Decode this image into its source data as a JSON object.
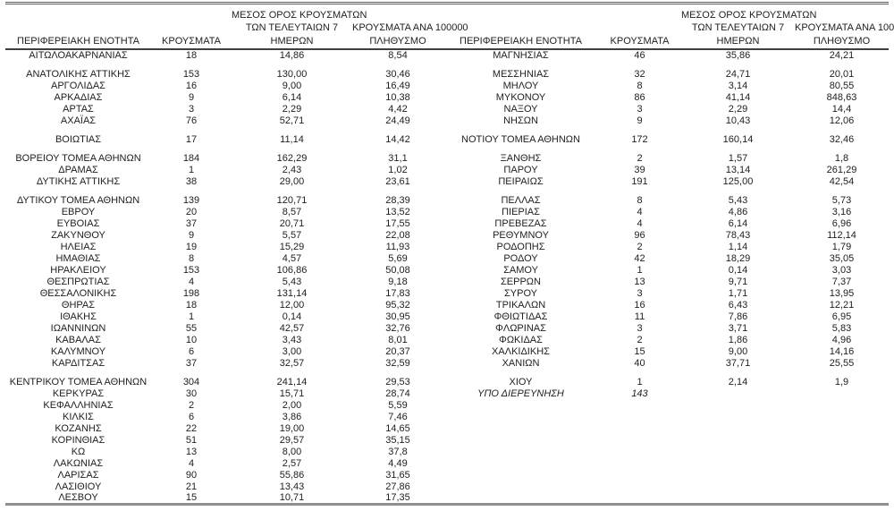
{
  "header": {
    "region": "ΠΕΡΙΦΕΡΕΙΑΚΗ ΕΝΟΤΗΤΑ",
    "cases": "ΚΡΟΥΣΜΑΤΑ",
    "avg_line1": "ΜΕΣΟΣ ΟΡΟΣ ΚΡΟΥΣΜΑΤΩΝ",
    "avg_line2": "ΤΩΝ ΤΕΛΕΥΤΑΙΩΝ 7",
    "avg_line3": "ΗΜΕΡΩΝ",
    "per100k_line1": "ΚΡΟΥΣΜΑΤΑ ΑΝΑ 100000",
    "per100k_line2": "ΠΛΗΘΥΣΜΟ"
  },
  "colors": {
    "text": "#212121",
    "header_rule": "#3f3f3f",
    "top_rule": "#5a5a5a",
    "bottom_rule": "#8f8f8f"
  },
  "left_rows": [
    {
      "region": "ΑΙΤΩΛΟΑΚΑΡΝΑΝΙΑΣ",
      "cases": "18",
      "avg7": "14,86",
      "per100k": "8,54",
      "gap": false
    },
    {
      "region": "ΑΝΑΤΟΛΙΚΗΣ ΑΤΤΙΚΗΣ",
      "cases": "153",
      "avg7": "130,00",
      "per100k": "30,46",
      "gap": true
    },
    {
      "region": "ΑΡΓΟΛΙΔΑΣ",
      "cases": "16",
      "avg7": "9,00",
      "per100k": "16,49",
      "gap": false
    },
    {
      "region": "ΑΡΚΑΔΙΑΣ",
      "cases": "9",
      "avg7": "6,14",
      "per100k": "10,38",
      "gap": false
    },
    {
      "region": "ΑΡΤΑΣ",
      "cases": "3",
      "avg7": "2,29",
      "per100k": "4,42",
      "gap": false
    },
    {
      "region": "ΑΧΑΪΑΣ",
      "cases": "76",
      "avg7": "52,71",
      "per100k": "24,49",
      "gap": false
    },
    {
      "region": "ΒΟΙΩΤΙΑΣ",
      "cases": "17",
      "avg7": "11,14",
      "per100k": "14,42",
      "gap": true
    },
    {
      "region": "ΒΟΡΕΙΟΥ ΤΟΜΕΑ ΑΘΗΝΩΝ",
      "cases": "184",
      "avg7": "162,29",
      "per100k": "31,1",
      "gap": true
    },
    {
      "region": "ΔΡΑΜΑΣ",
      "cases": "1",
      "avg7": "2,43",
      "per100k": "1,02",
      "gap": false
    },
    {
      "region": "ΔΥΤΙΚΗΣ ΑΤΤΙΚΗΣ",
      "cases": "38",
      "avg7": "29,00",
      "per100k": "23,61",
      "gap": false
    },
    {
      "region": "ΔΥΤΙΚΟΥ ΤΟΜΕΑ ΑΘΗΝΩΝ",
      "cases": "139",
      "avg7": "120,71",
      "per100k": "28,39",
      "gap": true
    },
    {
      "region": "ΕΒΡΟΥ",
      "cases": "20",
      "avg7": "8,57",
      "per100k": "13,52",
      "gap": false
    },
    {
      "region": "ΕΥΒΟΙΑΣ",
      "cases": "37",
      "avg7": "20,71",
      "per100k": "17,55",
      "gap": false
    },
    {
      "region": "ΖΑΚΥΝΘΟΥ",
      "cases": "9",
      "avg7": "5,57",
      "per100k": "22,08",
      "gap": false
    },
    {
      "region": "ΗΛΕΙΑΣ",
      "cases": "19",
      "avg7": "15,29",
      "per100k": "11,93",
      "gap": false
    },
    {
      "region": "ΗΜΑΘΙΑΣ",
      "cases": "8",
      "avg7": "4,57",
      "per100k": "5,69",
      "gap": false
    },
    {
      "region": "ΗΡΑΚΛΕΙΟΥ",
      "cases": "153",
      "avg7": "106,86",
      "per100k": "50,08",
      "gap": false
    },
    {
      "region": "ΘΕΣΠΡΩΤΙΑΣ",
      "cases": "4",
      "avg7": "5,43",
      "per100k": "9,18",
      "gap": false
    },
    {
      "region": "ΘΕΣΣΑΛΟΝΙΚΗΣ",
      "cases": "198",
      "avg7": "131,14",
      "per100k": "17,83",
      "gap": false
    },
    {
      "region": "ΘΗΡΑΣ",
      "cases": "18",
      "avg7": "12,00",
      "per100k": "95,32",
      "gap": false
    },
    {
      "region": "ΙΘΑΚΗΣ",
      "cases": "1",
      "avg7": "0,14",
      "per100k": "30,95",
      "gap": false
    },
    {
      "region": "ΙΩΑΝΝΙΝΩΝ",
      "cases": "55",
      "avg7": "42,57",
      "per100k": "32,76",
      "gap": false
    },
    {
      "region": "ΚΑΒΑΛΑΣ",
      "cases": "10",
      "avg7": "3,43",
      "per100k": "8,01",
      "gap": false
    },
    {
      "region": "ΚΑΛΥΜΝΟΥ",
      "cases": "6",
      "avg7": "3,00",
      "per100k": "20,37",
      "gap": false
    },
    {
      "region": "ΚΑΡΔΙΤΣΑΣ",
      "cases": "37",
      "avg7": "32,57",
      "per100k": "32,59",
      "gap": false
    },
    {
      "region": "ΚΕΝΤΡΙΚΟΥ ΤΟΜΕΑ ΑΘΗΝΩΝ",
      "cases": "304",
      "avg7": "241,14",
      "per100k": "29,53",
      "gap": true
    },
    {
      "region": "ΚΕΡΚΥΡΑΣ",
      "cases": "30",
      "avg7": "15,71",
      "per100k": "28,74",
      "gap": false
    },
    {
      "region": "ΚΕΦΑΛΛΗΝΙΑΣ",
      "cases": "2",
      "avg7": "2,00",
      "per100k": "5,59",
      "gap": false
    },
    {
      "region": "ΚΙΛΚΙΣ",
      "cases": "6",
      "avg7": "3,86",
      "per100k": "7,46",
      "gap": false
    },
    {
      "region": "ΚΟΖΑΝΗΣ",
      "cases": "22",
      "avg7": "19,00",
      "per100k": "14,65",
      "gap": false
    },
    {
      "region": "ΚΟΡΙΝΘΙΑΣ",
      "cases": "51",
      "avg7": "29,57",
      "per100k": "35,15",
      "gap": false
    },
    {
      "region": "ΚΩ",
      "cases": "13",
      "avg7": "8,00",
      "per100k": "37,8",
      "gap": false
    },
    {
      "region": "ΛΑΚΩΝΙΑΣ",
      "cases": "4",
      "avg7": "2,57",
      "per100k": "4,49",
      "gap": false
    },
    {
      "region": "ΛΑΡΙΣΑΣ",
      "cases": "90",
      "avg7": "55,86",
      "per100k": "31,65",
      "gap": false
    },
    {
      "region": "ΛΑΣΙΘΙΟΥ",
      "cases": "21",
      "avg7": "13,43",
      "per100k": "27,86",
      "gap": false
    },
    {
      "region": "ΛΕΣΒΟΥ",
      "cases": "15",
      "avg7": "10,71",
      "per100k": "17,35",
      "gap": false
    }
  ],
  "right_rows": [
    {
      "region": "ΜΑΓΝΗΣΙΑΣ",
      "cases": "46",
      "avg7": "35,86",
      "per100k": "24,21",
      "gap": false
    },
    {
      "region": "ΜΕΣΣΗΝΙΑΣ",
      "cases": "32",
      "avg7": "24,71",
      "per100k": "20,01",
      "gap": true
    },
    {
      "region": "ΜΗΛΟΥ",
      "cases": "8",
      "avg7": "3,14",
      "per100k": "80,55",
      "gap": false
    },
    {
      "region": "ΜΥΚΟΝΟΥ",
      "cases": "86",
      "avg7": "41,14",
      "per100k": "848,63",
      "gap": false
    },
    {
      "region": "ΝΑΞΟΥ",
      "cases": "3",
      "avg7": "2,29",
      "per100k": "14,4",
      "gap": false
    },
    {
      "region": "ΝΗΣΩΝ",
      "cases": "9",
      "avg7": "10,43",
      "per100k": "12,06",
      "gap": false
    },
    {
      "region": "ΝΟΤΙΟΥ ΤΟΜΕΑ ΑΘΗΝΩΝ",
      "cases": "172",
      "avg7": "160,14",
      "per100k": "32,46",
      "gap": true
    },
    {
      "region": "ΞΑΝΘΗΣ",
      "cases": "2",
      "avg7": "1,57",
      "per100k": "1,8",
      "gap": true
    },
    {
      "region": "ΠΑΡΟΥ",
      "cases": "39",
      "avg7": "13,14",
      "per100k": "261,29",
      "gap": false
    },
    {
      "region": "ΠΕΙΡΑΙΩΣ",
      "cases": "191",
      "avg7": "125,00",
      "per100k": "42,54",
      "gap": false
    },
    {
      "region": "ΠΕΛΛΑΣ",
      "cases": "8",
      "avg7": "5,43",
      "per100k": "5,73",
      "gap": true
    },
    {
      "region": "ΠΙΕΡΙΑΣ",
      "cases": "4",
      "avg7": "4,86",
      "per100k": "3,16",
      "gap": false
    },
    {
      "region": "ΠΡΕΒΕΖΑΣ",
      "cases": "4",
      "avg7": "6,14",
      "per100k": "6,96",
      "gap": false
    },
    {
      "region": "ΡΕΘΥΜΝΟΥ",
      "cases": "96",
      "avg7": "78,43",
      "per100k": "112,14",
      "gap": false
    },
    {
      "region": "ΡΟΔΟΠΗΣ",
      "cases": "2",
      "avg7": "1,14",
      "per100k": "1,79",
      "gap": false
    },
    {
      "region": "ΡΟΔΟΥ",
      "cases": "42",
      "avg7": "18,29",
      "per100k": "35,05",
      "gap": false
    },
    {
      "region": "ΣΑΜΟΥ",
      "cases": "1",
      "avg7": "0,14",
      "per100k": "3,03",
      "gap": false
    },
    {
      "region": "ΣΕΡΡΩΝ",
      "cases": "13",
      "avg7": "9,71",
      "per100k": "7,37",
      "gap": false
    },
    {
      "region": "ΣΥΡΟΥ",
      "cases": "3",
      "avg7": "1,71",
      "per100k": "13,95",
      "gap": false
    },
    {
      "region": "ΤΡΙΚΑΛΩΝ",
      "cases": "16",
      "avg7": "6,43",
      "per100k": "12,21",
      "gap": false
    },
    {
      "region": "ΦΘΙΩΤΙΔΑΣ",
      "cases": "11",
      "avg7": "7,86",
      "per100k": "6,95",
      "gap": false
    },
    {
      "region": "ΦΛΩΡΙΝΑΣ",
      "cases": "3",
      "avg7": "3,71",
      "per100k": "5,83",
      "gap": false
    },
    {
      "region": "ΦΩΚΙΔΑΣ",
      "cases": "2",
      "avg7": "1,86",
      "per100k": "4,96",
      "gap": false
    },
    {
      "region": "ΧΑΛΚΙΔΙΚΗΣ",
      "cases": "15",
      "avg7": "9,00",
      "per100k": "14,16",
      "gap": false
    },
    {
      "region": "ΧΑΝΙΩΝ",
      "cases": "40",
      "avg7": "37,71",
      "per100k": "25,55",
      "gap": false
    },
    {
      "region": "ΧΙΟΥ",
      "cases": "1",
      "avg7": "2,14",
      "per100k": "1,9",
      "gap": true
    },
    {
      "region": "ΥΠΟ ΔΙΕΡΕΥΝΗΣΗ",
      "cases": "143",
      "avg7": "",
      "per100k": "",
      "gap": false,
      "italic": true
    }
  ]
}
